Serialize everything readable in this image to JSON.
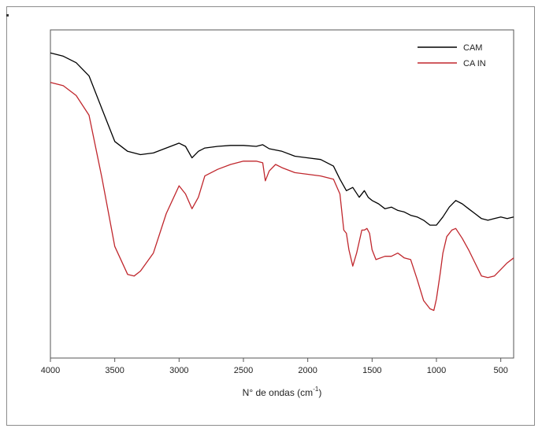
{
  "chart_data": {
    "type": "line",
    "title": "",
    "xlabel": "N° de ondas (cm",
    "xlabel_superscript": "-1",
    "xlabel_suffix": ")",
    "ylabel": "",
    "xlim": [
      4000,
      400
    ],
    "x_reversed": true,
    "y_ticks_shown": false,
    "grid": false,
    "legend_position": "top-right",
    "x_ticks": [
      4000,
      3500,
      3000,
      2500,
      2000,
      1500,
      1000,
      500
    ],
    "x_tick_labels": [
      "4000",
      "3500",
      "3000",
      "2500",
      "2000",
      "1500",
      "1000",
      "500"
    ],
    "series": [
      {
        "name": "CAM",
        "color": "#000000",
        "points": [
          [
            4000,
            0.93
          ],
          [
            3900,
            0.92
          ],
          [
            3800,
            0.9
          ],
          [
            3700,
            0.86
          ],
          [
            3600,
            0.76
          ],
          [
            3500,
            0.66
          ],
          [
            3400,
            0.63
          ],
          [
            3300,
            0.62
          ],
          [
            3200,
            0.625
          ],
          [
            3100,
            0.64
          ],
          [
            3000,
            0.655
          ],
          [
            2950,
            0.645
          ],
          [
            2900,
            0.61
          ],
          [
            2850,
            0.63
          ],
          [
            2800,
            0.64
          ],
          [
            2700,
            0.645
          ],
          [
            2600,
            0.648
          ],
          [
            2500,
            0.648
          ],
          [
            2400,
            0.645
          ],
          [
            2350,
            0.65
          ],
          [
            2300,
            0.638
          ],
          [
            2200,
            0.63
          ],
          [
            2100,
            0.615
          ],
          [
            2000,
            0.61
          ],
          [
            1900,
            0.605
          ],
          [
            1800,
            0.585
          ],
          [
            1750,
            0.545
          ],
          [
            1700,
            0.51
          ],
          [
            1650,
            0.52
          ],
          [
            1600,
            0.49
          ],
          [
            1560,
            0.51
          ],
          [
            1530,
            0.49
          ],
          [
            1500,
            0.48
          ],
          [
            1450,
            0.47
          ],
          [
            1400,
            0.455
          ],
          [
            1350,
            0.46
          ],
          [
            1300,
            0.45
          ],
          [
            1250,
            0.445
          ],
          [
            1200,
            0.435
          ],
          [
            1150,
            0.43
          ],
          [
            1100,
            0.42
          ],
          [
            1050,
            0.405
          ],
          [
            1000,
            0.405
          ],
          [
            950,
            0.43
          ],
          [
            900,
            0.46
          ],
          [
            850,
            0.48
          ],
          [
            800,
            0.47
          ],
          [
            750,
            0.455
          ],
          [
            700,
            0.44
          ],
          [
            650,
            0.425
          ],
          [
            600,
            0.42
          ],
          [
            550,
            0.425
          ],
          [
            500,
            0.43
          ],
          [
            450,
            0.425
          ],
          [
            400,
            0.43
          ]
        ]
      },
      {
        "name": "CA IN",
        "color": "#c0272d",
        "points": [
          [
            4000,
            0.84
          ],
          [
            3900,
            0.83
          ],
          [
            3800,
            0.8
          ],
          [
            3700,
            0.74
          ],
          [
            3600,
            0.55
          ],
          [
            3500,
            0.34
          ],
          [
            3400,
            0.255
          ],
          [
            3350,
            0.25
          ],
          [
            3300,
            0.265
          ],
          [
            3200,
            0.32
          ],
          [
            3100,
            0.44
          ],
          [
            3000,
            0.525
          ],
          [
            2950,
            0.5
          ],
          [
            2900,
            0.455
          ],
          [
            2850,
            0.49
          ],
          [
            2800,
            0.555
          ],
          [
            2700,
            0.575
          ],
          [
            2600,
            0.59
          ],
          [
            2500,
            0.6
          ],
          [
            2400,
            0.6
          ],
          [
            2350,
            0.595
          ],
          [
            2330,
            0.54
          ],
          [
            2300,
            0.57
          ],
          [
            2250,
            0.59
          ],
          [
            2200,
            0.58
          ],
          [
            2100,
            0.565
          ],
          [
            2000,
            0.56
          ],
          [
            1900,
            0.555
          ],
          [
            1800,
            0.545
          ],
          [
            1750,
            0.5
          ],
          [
            1720,
            0.39
          ],
          [
            1700,
            0.38
          ],
          [
            1680,
            0.33
          ],
          [
            1650,
            0.28
          ],
          [
            1620,
            0.32
          ],
          [
            1580,
            0.39
          ],
          [
            1560,
            0.39
          ],
          [
            1540,
            0.395
          ],
          [
            1520,
            0.38
          ],
          [
            1500,
            0.33
          ],
          [
            1470,
            0.3
          ],
          [
            1400,
            0.31
          ],
          [
            1350,
            0.31
          ],
          [
            1300,
            0.32
          ],
          [
            1250,
            0.305
          ],
          [
            1200,
            0.3
          ],
          [
            1150,
            0.24
          ],
          [
            1100,
            0.175
          ],
          [
            1050,
            0.15
          ],
          [
            1020,
            0.145
          ],
          [
            1000,
            0.18
          ],
          [
            970,
            0.26
          ],
          [
            950,
            0.32
          ],
          [
            920,
            0.37
          ],
          [
            880,
            0.39
          ],
          [
            850,
            0.395
          ],
          [
            800,
            0.365
          ],
          [
            750,
            0.33
          ],
          [
            700,
            0.29
          ],
          [
            650,
            0.25
          ],
          [
            600,
            0.245
          ],
          [
            550,
            0.25
          ],
          [
            500,
            0.27
          ],
          [
            450,
            0.29
          ],
          [
            400,
            0.305
          ]
        ]
      }
    ]
  }
}
